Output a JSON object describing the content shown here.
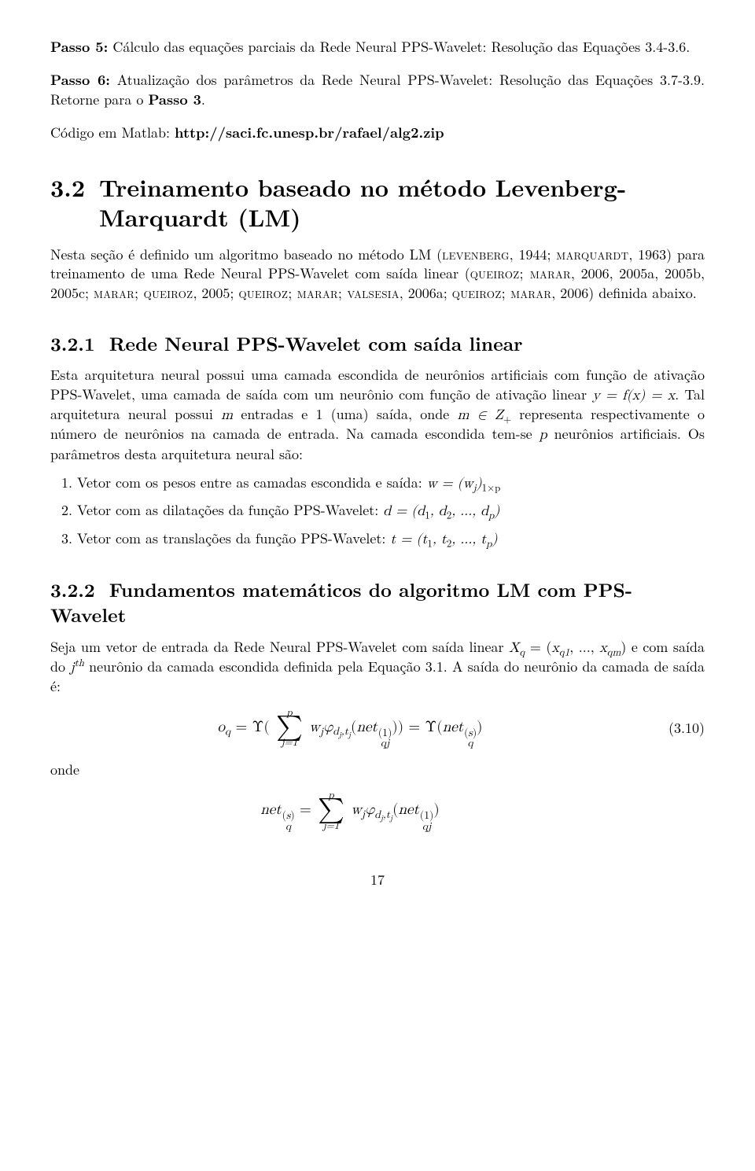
{
  "step5": {
    "label": "Passo 5:",
    "text": " Cálculo das equações parciais da Rede Neural PPS-Wavelet: Resolução das Equações 3.4-3.6."
  },
  "step6": {
    "label": "Passo 6:",
    "text_a": " Atualização dos parâmetros da Rede Neural PPS-Wavelet: Resolução das Equações 3.7-3.9. Retorne para o ",
    "bold_ref": "Passo 3",
    "text_b": "."
  },
  "codigo": {
    "text_a": "Código em Matlab: ",
    "url": "http://saci.fc.unesp.br/rafael/alg2.zip"
  },
  "sec32": {
    "num": "3.2",
    "title": "Treinamento baseado no método Levenberg-Marquardt (LM)"
  },
  "p32": {
    "a": "Nesta seção é definido um algoritmo baseado no método LM (",
    "sc1": "levenberg",
    "b": ", 1944; ",
    "sc2": "marquardt",
    "c": ", 1963) para treinamento de uma Rede Neural PPS-Wavelet com saída linear (",
    "sc3": "queiroz; marar",
    "d": ", 2006, 2005a, 2005b, 2005c; ",
    "sc4": "marar; queiroz",
    "e": ", 2005; ",
    "sc5": "queiroz; marar; valsesia",
    "f": ", 2006a; ",
    "sc6": "queiroz; marar",
    "g": ", 2006) definida abaixo."
  },
  "sec321": {
    "num": "3.2.1",
    "title": "Rede Neural PPS-Wavelet com saída linear"
  },
  "p321": {
    "a": "Esta arquitetura neural possui uma camada escondida de neurônios artificiais com função de ativação PPS-Wavelet, uma camada de saída com um neurônio com função de ativação linear ",
    "eq1": "y = f(x) = x",
    "b": ". Tal arquitetura neural possui ",
    "m": "m",
    "c": " entradas e 1 (uma) saída, onde ",
    "m2": "m ∈ Z",
    "plus": "+",
    "d": " representa respectivamente o número de neurônios na camada de entrada. Na camada escondida tem-se ",
    "p": "p",
    "e": " neurônios artificiais. Os parâmetros desta arquitetura neural são:"
  },
  "list": {
    "i1a": "Vetor com os pesos entre as camadas escondida e saída: ",
    "i1b": "w = (w",
    "i1c": ")",
    "i1sub": "j",
    "i1dim": "1×p",
    "i2a": "Vetor com as dilatações da função PPS-Wavelet: ",
    "i2b": "d = (d",
    "i2c": ", d",
    "i2d": ", ..., d",
    "i2e": ")",
    "i3a": "Vetor com as translações da função PPS-Wavelet: ",
    "i3b": "t = (t",
    "i3c": ", t",
    "i3d": ", ..., t",
    "i3e": ")"
  },
  "sec322": {
    "num": "3.2.2",
    "title": "Fundamentos matemáticos do algoritmo LM com PPS-Wavelet"
  },
  "p322": {
    "a": "Seja um vetor de entrada da Rede Neural PPS-Wavelet com saída linear ",
    "xq": "X",
    "b": " = (",
    "xq1": "x",
    "c": ", ..., ",
    "xqm": "x",
    "d": ") e com saída do ",
    "jth": "j",
    "th": "th",
    "e": " neurônio da camada escondida definida pela Equação 3.1. A saída do neurônio da camada de saída é:"
  },
  "eq310": {
    "num": "(3.10)",
    "sum_top": "p",
    "sum_bot": "j=1"
  },
  "onde": "onde",
  "eq_onde": {
    "sum_top": "p",
    "sum_bot": "j=1"
  },
  "pagenum": "17"
}
